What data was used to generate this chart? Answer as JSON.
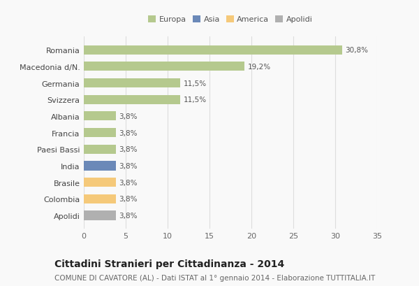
{
  "categories": [
    "Romania",
    "Macedonia d/N.",
    "Germania",
    "Svizzera",
    "Albania",
    "Francia",
    "Paesi Bassi",
    "India",
    "Brasile",
    "Colombia",
    "Apolidi"
  ],
  "values": [
    30.8,
    19.2,
    11.5,
    11.5,
    3.8,
    3.8,
    3.8,
    3.8,
    3.8,
    3.8,
    3.8
  ],
  "labels": [
    "30,8%",
    "19,2%",
    "11,5%",
    "11,5%",
    "3,8%",
    "3,8%",
    "3,8%",
    "3,8%",
    "3,8%",
    "3,8%",
    "3,8%"
  ],
  "bar_colors": [
    "#b5c98e",
    "#b5c98e",
    "#b5c98e",
    "#b5c98e",
    "#b5c98e",
    "#b5c98e",
    "#b5c98e",
    "#6b89b8",
    "#f5c97a",
    "#f5c97a",
    "#b0b0b0"
  ],
  "legend_labels": [
    "Europa",
    "Asia",
    "America",
    "Apolidi"
  ],
  "legend_colors": [
    "#b5c98e",
    "#6b89b8",
    "#f5c97a",
    "#b0b0b0"
  ],
  "xlim": [
    0,
    35
  ],
  "xticks": [
    0,
    5,
    10,
    15,
    20,
    25,
    30,
    35
  ],
  "title": "Cittadini Stranieri per Cittadinanza - 2014",
  "subtitle": "COMUNE DI CAVATORE (AL) - Dati ISTAT al 1° gennaio 2014 - Elaborazione TUTTITALIA.IT",
  "title_fontsize": 10,
  "subtitle_fontsize": 7.5,
  "background_color": "#f9f9f9",
  "bar_height": 0.55,
  "grid_color": "#dddddd"
}
